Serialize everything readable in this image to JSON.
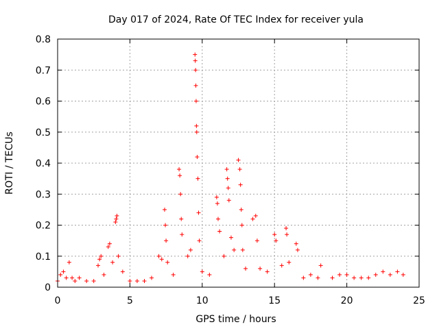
{
  "chart_data": {
    "type": "scatter",
    "title": "Day 017 of 2024, Rate Of TEC Index for receiver yula",
    "xlabel": "GPS time / hours",
    "ylabel": "ROTI / TECUs",
    "xlim": [
      0,
      25
    ],
    "ylim": [
      0,
      0.8
    ],
    "x_ticks": [
      "0",
      "5",
      "10",
      "15",
      "20",
      "25"
    ],
    "y_ticks": [
      "0",
      "0.1",
      "0.2",
      "0.3",
      "0.4",
      "0.5",
      "0.6",
      "0.7",
      "0.8"
    ],
    "grid": true,
    "marker": "+",
    "color": "#ff0000",
    "series": [
      {
        "x": [
          0.0,
          0.2,
          0.4,
          0.6,
          0.8,
          1.0,
          1.2,
          1.5,
          2.0,
          2.5,
          2.8,
          2.9,
          3.0,
          3.2,
          3.5,
          3.6,
          3.8,
          4.0,
          4.05,
          4.1,
          4.2,
          4.5,
          5.0,
          5.5,
          6.0,
          6.5,
          7.0,
          7.2,
          7.4,
          7.45,
          7.5,
          7.6,
          8.0,
          8.4,
          8.45,
          8.5,
          8.55,
          8.6,
          9.0,
          9.2,
          9.5,
          9.52,
          9.54,
          9.56,
          9.58,
          9.6,
          9.62,
          9.65,
          9.7,
          9.75,
          9.8,
          10.0,
          10.5,
          11.0,
          11.05,
          11.1,
          11.2,
          11.5,
          11.7,
          11.75,
          11.8,
          11.85,
          12.0,
          12.2,
          12.5,
          12.6,
          12.65,
          12.7,
          12.75,
          12.8,
          13.0,
          13.5,
          13.7,
          13.8,
          14.0,
          14.5,
          15.0,
          15.1,
          15.5,
          15.8,
          15.85,
          16.0,
          16.5,
          16.6,
          17.0,
          17.5,
          18.0,
          18.2,
          19.0,
          19.5,
          20.0,
          20.5,
          21.0,
          21.5,
          22.0,
          22.5,
          23.0,
          23.5,
          23.9
        ],
        "y": [
          0.02,
          0.04,
          0.05,
          0.03,
          0.08,
          0.03,
          0.02,
          0.03,
          0.02,
          0.02,
          0.07,
          0.09,
          0.1,
          0.04,
          0.13,
          0.14,
          0.08,
          0.21,
          0.22,
          0.23,
          0.1,
          0.05,
          0.02,
          0.02,
          0.02,
          0.03,
          0.1,
          0.09,
          0.25,
          0.2,
          0.15,
          0.08,
          0.04,
          0.38,
          0.36,
          0.3,
          0.22,
          0.17,
          0.1,
          0.12,
          0.75,
          0.73,
          0.7,
          0.65,
          0.6,
          0.52,
          0.5,
          0.42,
          0.35,
          0.24,
          0.15,
          0.05,
          0.04,
          0.29,
          0.27,
          0.22,
          0.18,
          0.1,
          0.38,
          0.35,
          0.32,
          0.28,
          0.16,
          0.12,
          0.41,
          0.38,
          0.33,
          0.25,
          0.2,
          0.12,
          0.06,
          0.22,
          0.23,
          0.15,
          0.06,
          0.05,
          0.17,
          0.15,
          0.07,
          0.19,
          0.17,
          0.08,
          0.14,
          0.12,
          0.03,
          0.04,
          0.03,
          0.07,
          0.03,
          0.04,
          0.04,
          0.03,
          0.03,
          0.03,
          0.04,
          0.05,
          0.04,
          0.05,
          0.04
        ]
      }
    ]
  }
}
